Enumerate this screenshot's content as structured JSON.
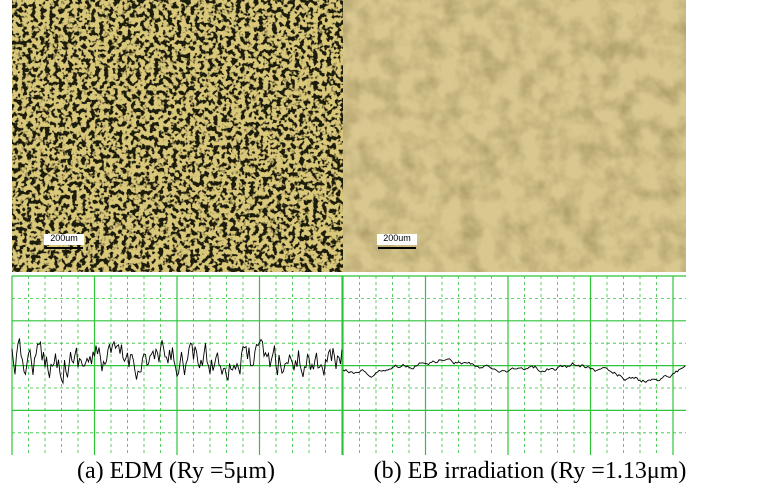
{
  "panels": [
    {
      "scale_bar": "200um",
      "caption": "(a) EDM (Ry =5μm)"
    },
    {
      "scale_bar": "200um",
      "caption": "(b) EB irradiation (Ry =1.13μm)"
    }
  ]
}
